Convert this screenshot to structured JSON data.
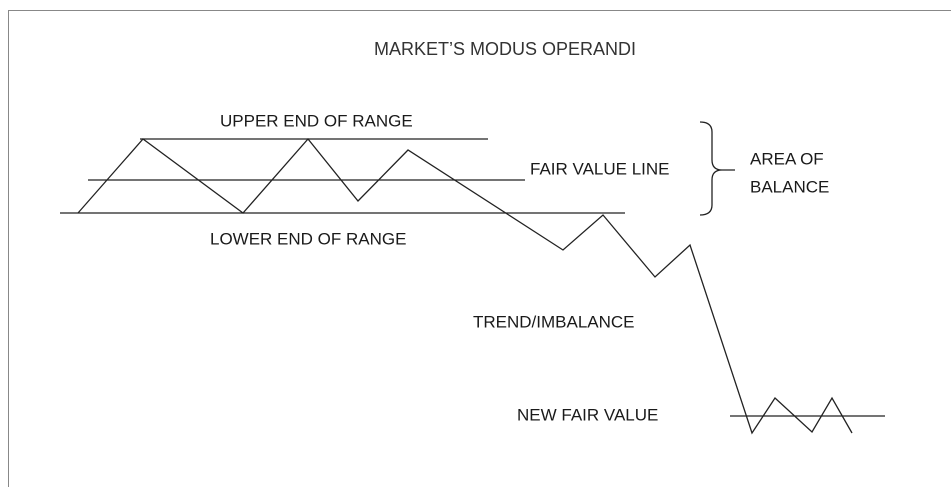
{
  "title": "MARKET’S MODUS OPERANDI",
  "labels": {
    "upper_end": "UPPER END OF RANGE",
    "fair_value_line": "FAIR VALUE LINE",
    "area_of_balance": [
      "AREA OF",
      "BALANCE"
    ],
    "lower_end": "LOWER END OF RANGE",
    "trend": "TREND/IMBALANCE",
    "new_fair_value": "NEW FAIR VALUE"
  }
}
